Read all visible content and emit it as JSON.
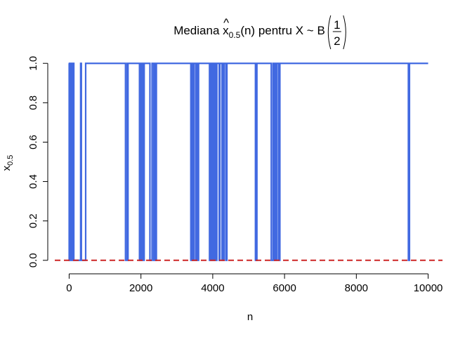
{
  "chart_data": {
    "type": "line",
    "title": {
      "prefix": "Mediana ",
      "var": "x",
      "hat": "^",
      "subscript": "0.5",
      "suffix": "(n) pentru X ~ B",
      "frac_num": "1",
      "frac_den": "2"
    },
    "xlabel": "n",
    "ylabel": {
      "var": "x",
      "hat": "^",
      "subscript": "0.5"
    },
    "xlim": [
      -400,
      10400
    ],
    "ylim": [
      -0.04,
      1.04
    ],
    "x_ticks": [
      0,
      2000,
      4000,
      6000,
      8000,
      10000
    ],
    "x_tick_labels": [
      "0",
      "2000",
      "4000",
      "6000",
      "8000",
      "10000"
    ],
    "y_ticks": [
      0.0,
      0.2,
      0.4,
      0.6,
      0.8,
      1.0
    ],
    "y_tick_labels": [
      "0.0",
      "0.2",
      "0.4",
      "0.6",
      "0.8",
      "1.0"
    ],
    "grid": false,
    "series": [
      {
        "line_color": "#4169E1",
        "style": "step",
        "x_max": 10000,
        "zero_intervals": [
          [
            1,
            8
          ],
          [
            16,
            22
          ],
          [
            35,
            45
          ],
          [
            52,
            60
          ],
          [
            75,
            95
          ],
          [
            130,
            320
          ],
          [
            340,
            460
          ],
          [
            1570,
            1615
          ],
          [
            1625,
            1640
          ],
          [
            1960,
            1985
          ],
          [
            2010,
            2030
          ],
          [
            2060,
            2090
          ],
          [
            2250,
            2310
          ],
          [
            2355,
            2390
          ],
          [
            2410,
            2430
          ],
          [
            3390,
            3400
          ],
          [
            3415,
            3450
          ],
          [
            3465,
            3480
          ],
          [
            3530,
            3550
          ],
          [
            3590,
            3605
          ],
          [
            3910,
            3930
          ],
          [
            3955,
            3990
          ],
          [
            4010,
            4020
          ],
          [
            4045,
            4060
          ],
          [
            4100,
            4115
          ],
          [
            4180,
            4200
          ],
          [
            4260,
            4275
          ],
          [
            4305,
            4320
          ],
          [
            4370,
            4395
          ],
          [
            5190,
            5230
          ],
          [
            5630,
            5680
          ],
          [
            5700,
            5720
          ],
          [
            5760,
            5780
          ],
          [
            5830,
            5870
          ],
          [
            9450,
            9480
          ]
        ]
      },
      {
        "line_color": "#CD2626",
        "style": "dashed-hline",
        "y": 0
      }
    ]
  }
}
